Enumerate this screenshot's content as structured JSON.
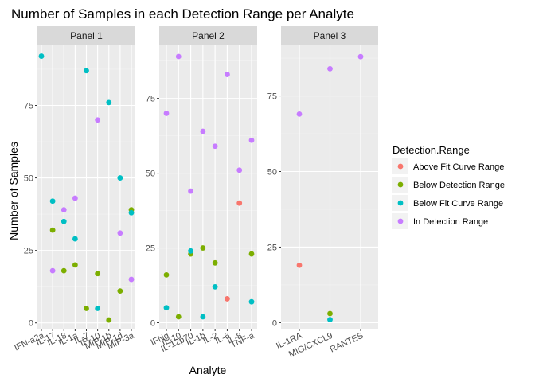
{
  "chart_data": {
    "type": "scatter",
    "title": "Number of Samples in each Detection Range per Analyte",
    "xlabel": "Analyte",
    "ylabel": "Number of Samples",
    "grid": true,
    "legend": {
      "title": "Detection.Range",
      "position": "right",
      "entries": [
        {
          "name": "Above Fit Curve Range",
          "color": "#F8766D"
        },
        {
          "name": "Below Detection Range",
          "color": "#7CAE00"
        },
        {
          "name": "Below Fit Curve Range",
          "color": "#00BFC4"
        },
        {
          "name": "In Detection Range",
          "color": "#C77CFF"
        }
      ]
    },
    "panels": [
      {
        "name": "Panel 1",
        "ylim": [
          -2,
          96
        ],
        "yticks": [
          0,
          25,
          50,
          75
        ],
        "categories": [
          "IFN-a2a",
          "IL-17",
          "IL-18",
          "IL-1a",
          "IL-7",
          "IP-10",
          "MIP-1b",
          "MIP-1d",
          "MIP-3a"
        ],
        "series": [
          {
            "name": "Below Detection Range",
            "values": [
              null,
              32,
              18,
              20,
              5,
              17,
              1,
              11,
              39
            ]
          },
          {
            "name": "Below Fit Curve Range",
            "values": [
              92,
              42,
              35,
              29,
              87,
              5,
              76,
              50,
              38
            ]
          },
          {
            "name": "In Detection Range",
            "values": [
              null,
              18,
              39,
              43,
              null,
              70,
              null,
              31,
              15
            ]
          }
        ]
      },
      {
        "name": "Panel 2",
        "ylim": [
          -2,
          93
        ],
        "yticks": [
          0,
          25,
          50,
          75
        ],
        "categories": [
          "IFNg",
          "IL-10",
          "IL-12p70",
          "IL-1b",
          "IL-2",
          "IL-6",
          "IL-8",
          "TNF-a"
        ],
        "series": [
          {
            "name": "Above Fit Curve Range",
            "values": [
              null,
              null,
              null,
              null,
              null,
              8,
              40,
              null
            ]
          },
          {
            "name": "Below Detection Range",
            "values": [
              16,
              2,
              23,
              25,
              20,
              null,
              null,
              23
            ]
          },
          {
            "name": "Below Fit Curve Range",
            "values": [
              5,
              null,
              24,
              2,
              12,
              null,
              null,
              7
            ]
          },
          {
            "name": "In Detection Range",
            "values": [
              70,
              89,
              44,
              64,
              59,
              83,
              51,
              61
            ]
          }
        ]
      },
      {
        "name": "Panel 3",
        "ylim": [
          -2,
          92
        ],
        "yticks": [
          0,
          25,
          50,
          75
        ],
        "categories": [
          "IL-1RA",
          "MIG/CXCL9",
          "RANTES"
        ],
        "series": [
          {
            "name": "Above Fit Curve Range",
            "values": [
              19,
              null,
              null
            ]
          },
          {
            "name": "Below Detection Range",
            "values": [
              null,
              3,
              null
            ]
          },
          {
            "name": "Below Fit Curve Range",
            "values": [
              null,
              1,
              null
            ]
          },
          {
            "name": "In Detection Range",
            "values": [
              69,
              84,
              88
            ]
          }
        ]
      }
    ]
  }
}
